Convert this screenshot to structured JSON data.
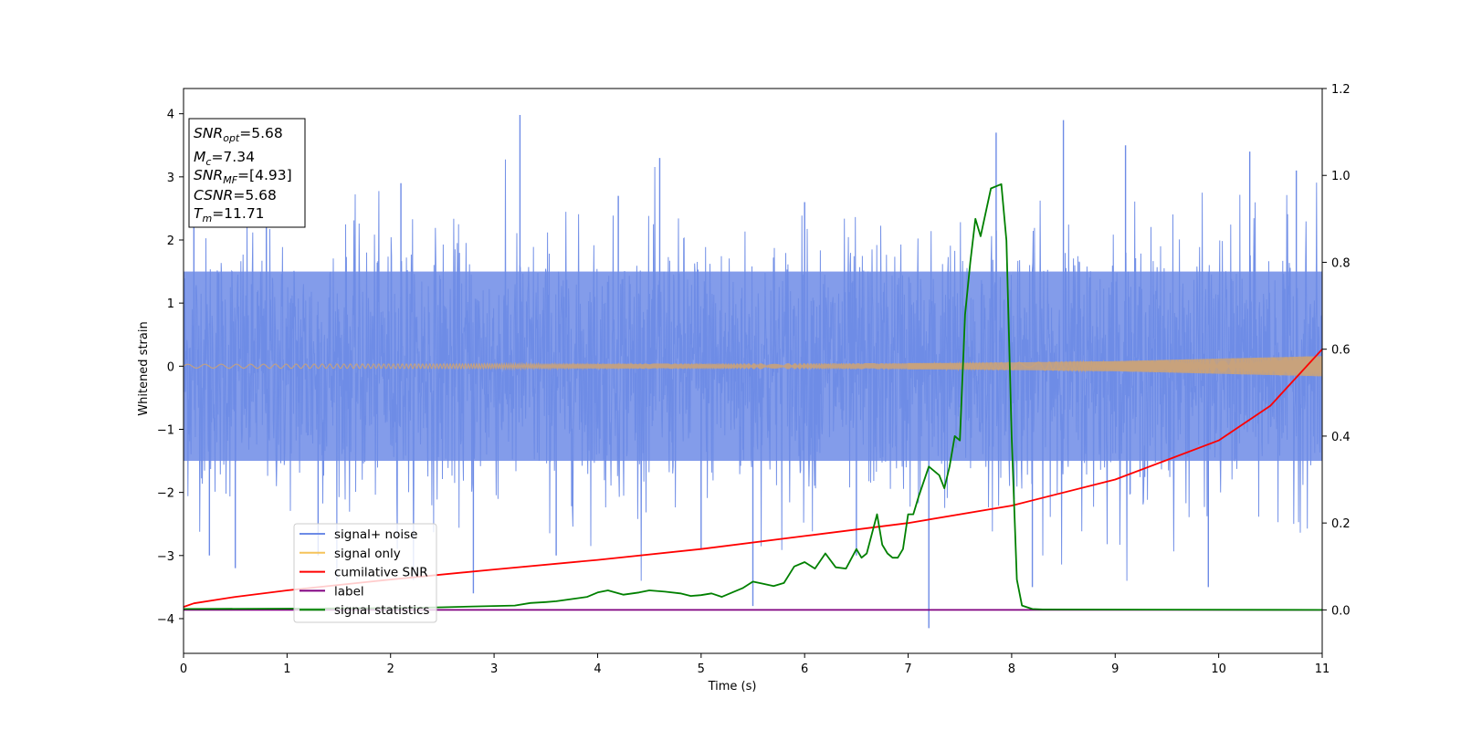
{
  "chart_data": {
    "type": "line",
    "xlabel": "Time (s)",
    "ylabel": "Whitened strain",
    "xlim": [
      0,
      11
    ],
    "ylim_left": [
      -4.55,
      4.4
    ],
    "ylim_right": [
      -0.1,
      1.2
    ],
    "xticks": [
      {
        "v": 0,
        "label": "0"
      },
      {
        "v": 1,
        "label": "1"
      },
      {
        "v": 2,
        "label": "2"
      },
      {
        "v": 3,
        "label": "3"
      },
      {
        "v": 4,
        "label": "4"
      },
      {
        "v": 5,
        "label": "5"
      },
      {
        "v": 6,
        "label": "6"
      },
      {
        "v": 7,
        "label": "7"
      },
      {
        "v": 8,
        "label": "8"
      },
      {
        "v": 9,
        "label": "9"
      },
      {
        "v": 10,
        "label": "10"
      },
      {
        "v": 11,
        "label": "11"
      }
    ],
    "yticks_left": [
      {
        "v": -4,
        "label": "−4"
      },
      {
        "v": -3,
        "label": "−3"
      },
      {
        "v": -2,
        "label": "−2"
      },
      {
        "v": -1,
        "label": "−1"
      },
      {
        "v": 0,
        "label": "0"
      },
      {
        "v": 1,
        "label": "1"
      },
      {
        "v": 2,
        "label": "2"
      },
      {
        "v": 3,
        "label": "3"
      },
      {
        "v": 4,
        "label": "4"
      }
    ],
    "yticks_right": [
      {
        "v": 0.0,
        "label": "0.0"
      },
      {
        "v": 0.2,
        "label": "0.2"
      },
      {
        "v": 0.4,
        "label": "0.4"
      },
      {
        "v": 0.6,
        "label": "0.6"
      },
      {
        "v": 0.8,
        "label": "0.8"
      },
      {
        "v": 1.0,
        "label": "1.0"
      },
      {
        "v": 1.2,
        "label": "1.2"
      }
    ],
    "legend": {
      "placement": "lower-left",
      "entries": [
        {
          "label": "signal+ noise",
          "color": "#6d8be6"
        },
        {
          "label": "signal only",
          "color": "#f5c35a"
        },
        {
          "label": "cumilative SNR",
          "color": "#ff0000"
        },
        {
          "label": "label",
          "color": "#800080"
        },
        {
          "label": "signal statistics",
          "color": "#008000"
        }
      ]
    },
    "info_box": {
      "lines": [
        {
          "sym": "SNR",
          "sub": "opt",
          "value": "=5.68"
        },
        {
          "sym": "M",
          "sub": "c",
          "value": "=7.34"
        },
        {
          "sym": "SNR",
          "sub": "MF",
          "value": "=[4.93]"
        },
        {
          "sym": "CSNR",
          "sub": "",
          "value": "=5.68"
        },
        {
          "sym": "T",
          "sub": "m",
          "value": "=11.71"
        }
      ]
    },
    "series": [
      {
        "name": "signal+ noise",
        "axis": "left",
        "color": "#6d8be6",
        "band": {
          "low": -1.5,
          "high": 1.5
        },
        "spikes": [
          {
            "x": 0.1,
            "y": 2.6
          },
          {
            "x": 0.25,
            "y": -3.0
          },
          {
            "x": 0.5,
            "y": -3.2
          },
          {
            "x": 0.8,
            "y": 2.8
          },
          {
            "x": 1.3,
            "y": -3.0
          },
          {
            "x": 2.1,
            "y": 2.9
          },
          {
            "x": 2.8,
            "y": -3.6
          },
          {
            "x": 3.25,
            "y": 3.98
          },
          {
            "x": 3.6,
            "y": -3.0
          },
          {
            "x": 4.2,
            "y": 2.7
          },
          {
            "x": 4.6,
            "y": 3.3
          },
          {
            "x": 5.0,
            "y": -2.9
          },
          {
            "x": 5.5,
            "y": -3.8
          },
          {
            "x": 6.0,
            "y": 2.6
          },
          {
            "x": 6.5,
            "y": -3.0
          },
          {
            "x": 7.2,
            "y": -4.15
          },
          {
            "x": 7.85,
            "y": 3.7
          },
          {
            "x": 8.2,
            "y": -3.5
          },
          {
            "x": 8.5,
            "y": 3.9
          },
          {
            "x": 9.1,
            "y": 3.5
          },
          {
            "x": 9.9,
            "y": -3.5
          },
          {
            "x": 10.3,
            "y": 3.4
          },
          {
            "x": 10.75,
            "y": 3.1
          }
        ]
      },
      {
        "name": "signal only",
        "axis": "left",
        "color": "#f5c35a",
        "amplitude": [
          {
            "x": 0,
            "y": 0.03
          },
          {
            "x": 7.5,
            "y": 0.05
          },
          {
            "x": 9,
            "y": 0.08
          },
          {
            "x": 10,
            "y": 0.12
          },
          {
            "x": 11,
            "y": 0.16
          }
        ]
      },
      {
        "name": "cumilative SNR",
        "axis": "right",
        "color": "#ff0000",
        "x": [
          0,
          0.1,
          0.5,
          1,
          2,
          3,
          4,
          5,
          6,
          7,
          8,
          9,
          10,
          10.5,
          11
        ],
        "y": [
          0.007,
          0.015,
          0.03,
          0.045,
          0.07,
          0.093,
          0.115,
          0.14,
          0.17,
          0.2,
          0.24,
          0.3,
          0.39,
          0.47,
          0.6
        ]
      },
      {
        "name": "label",
        "axis": "right",
        "color": "#800080",
        "x": [
          0,
          11
        ],
        "y": [
          0.0,
          0.0
        ]
      },
      {
        "name": "signal statistics",
        "axis": "right",
        "color": "#008000",
        "x": [
          0,
          1,
          2,
          2.5,
          2.8,
          3.0,
          3.2,
          3.35,
          3.5,
          3.6,
          3.75,
          3.9,
          4.0,
          4.1,
          4.25,
          4.4,
          4.5,
          4.65,
          4.8,
          4.9,
          5.0,
          5.1,
          5.2,
          5.3,
          5.4,
          5.5,
          5.6,
          5.7,
          5.8,
          5.9,
          6.0,
          6.1,
          6.2,
          6.3,
          6.4,
          6.5,
          6.55,
          6.6,
          6.7,
          6.75,
          6.8,
          6.85,
          6.9,
          6.95,
          7.0,
          7.05,
          7.1,
          7.2,
          7.3,
          7.35,
          7.4,
          7.45,
          7.5,
          7.55,
          7.6,
          7.65,
          7.7,
          7.8,
          7.9,
          7.95,
          8.0,
          8.05,
          8.1,
          8.2,
          8.3,
          11
        ],
        "y": [
          0.002,
          0.003,
          0.004,
          0.006,
          0.008,
          0.009,
          0.01,
          0.016,
          0.018,
          0.02,
          0.025,
          0.03,
          0.04,
          0.045,
          0.035,
          0.04,
          0.045,
          0.042,
          0.038,
          0.032,
          0.034,
          0.038,
          0.03,
          0.04,
          0.05,
          0.065,
          0.06,
          0.055,
          0.062,
          0.1,
          0.11,
          0.095,
          0.13,
          0.098,
          0.095,
          0.14,
          0.12,
          0.13,
          0.22,
          0.15,
          0.13,
          0.12,
          0.12,
          0.14,
          0.22,
          0.22,
          0.26,
          0.33,
          0.31,
          0.28,
          0.33,
          0.4,
          0.39,
          0.68,
          0.8,
          0.9,
          0.86,
          0.97,
          0.98,
          0.85,
          0.4,
          0.07,
          0.01,
          0.002,
          0.001,
          0.0
        ]
      }
    ]
  }
}
